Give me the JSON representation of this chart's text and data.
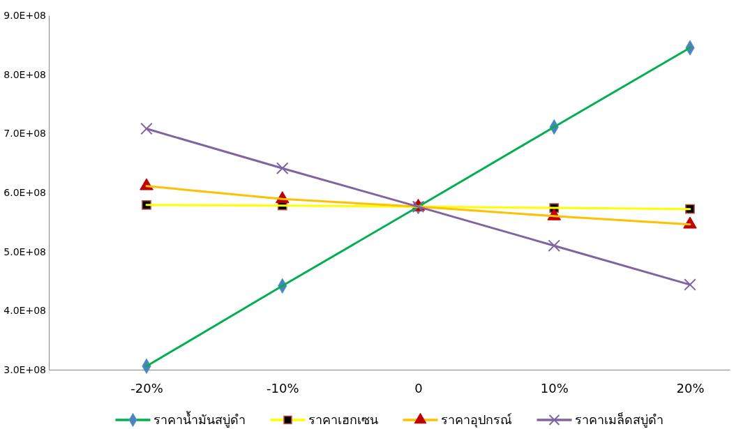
{
  "chart_data": {
    "type": "line",
    "categories": [
      "-20%",
      "-10%",
      "0",
      "10%",
      "20%"
    ],
    "series": [
      {
        "name": "ราคาน้ำมันสบู่ดำ",
        "color": "#00b050",
        "marker": "diamond",
        "values": [
          306000000,
          442000000,
          576000000,
          711000000,
          845000000
        ]
      },
      {
        "name": "ราคาเฮกเซน",
        "color": "#ffff00",
        "marker": "square",
        "values": [
          579000000,
          578000000,
          576000000,
          574000000,
          572000000
        ]
      },
      {
        "name": "ราคาอุปกรณ์",
        "color": "#ffc000",
        "marker": "triangle",
        "values": [
          611000000,
          589000000,
          576000000,
          560000000,
          546000000
        ]
      },
      {
        "name": "ราคาเมล็ดสบู่ดำ",
        "color": "#8064a2",
        "marker": "cross",
        "values": [
          708000000,
          641000000,
          576000000,
          510000000,
          444000000
        ]
      }
    ],
    "ylim": [
      300000000,
      900000000
    ],
    "yticks": [
      {
        "value": 300000000,
        "label": "3.0E+08"
      },
      {
        "value": 400000000,
        "label": "4.0E+08"
      },
      {
        "value": 500000000,
        "label": "5.0E+08"
      },
      {
        "value": 600000000,
        "label": "6.0E+08"
      },
      {
        "value": 700000000,
        "label": "7.0E+08"
      },
      {
        "value": 800000000,
        "label": "8.0E+08"
      },
      {
        "value": 900000000,
        "label": "9.0E+08"
      }
    ],
    "grid": false,
    "legend": "bottom"
  }
}
